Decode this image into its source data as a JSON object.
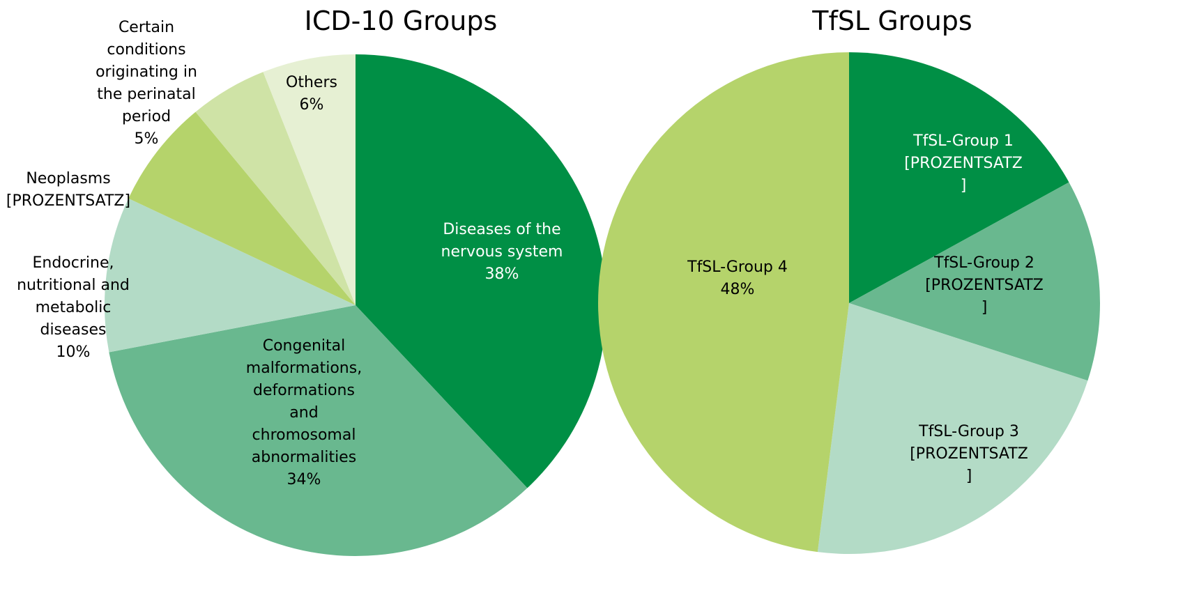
{
  "chart_data": [
    {
      "type": "pie",
      "title": "ICD-10 Groups",
      "categories": [
        "Diseases of the nervous system",
        "Congenital malformations, deformations and chromosomal abnormalities",
        "Endocrine, nutritional and metabolic diseases",
        "Neoplasms",
        "Certain conditions originating in the perinatal period",
        "Others"
      ],
      "values": [
        38,
        34,
        10,
        7,
        5,
        6
      ],
      "value_labels": [
        "38%",
        "34%",
        "10%",
        "[PROZENTSATZ]",
        "5%",
        "6%"
      ],
      "colors": [
        "#008f45",
        "#69b88f",
        "#b3dbc6",
        "#b5d36b",
        "#cfe3a6",
        "#e6f0d3"
      ]
    },
    {
      "type": "pie",
      "title": "TfSL Groups",
      "categories": [
        "TfSL-Group 1",
        "TfSL-Group 2",
        "TfSL-Group 3",
        "TfSL-Group 4"
      ],
      "values": [
        17,
        13,
        22,
        48
      ],
      "value_labels": [
        "[PROZENTSATZ]",
        "[PROZENTSATZ]",
        "[PROZENTSATZ]",
        "48%"
      ],
      "colors": [
        "#008f45",
        "#69b88f",
        "#b3dbc6",
        "#b5d36b"
      ]
    }
  ]
}
